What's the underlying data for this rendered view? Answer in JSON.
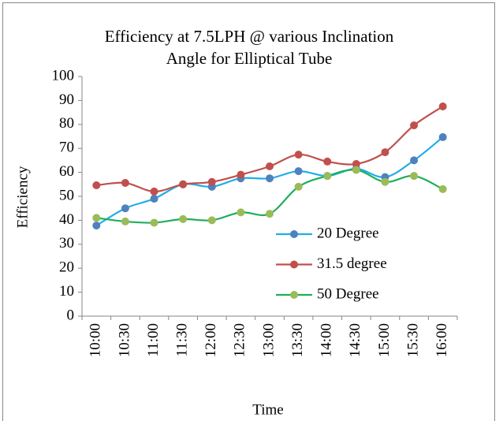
{
  "chart_data": {
    "type": "line",
    "title": [
      "Efficiency at 7.5LPH @ various Inclination",
      "Angle for Elliptical Tube"
    ],
    "x_label": "Time",
    "y_label": "Efficiency",
    "categories": [
      "10:00",
      "10:30",
      "11:00",
      "11:30",
      "12:00",
      "12:30",
      "13:00",
      "13:30",
      "14:00",
      "14:30",
      "15:00",
      "15:30",
      "16:00"
    ],
    "series": [
      {
        "name": "20 Degree",
        "color": "#4f81bd",
        "line_color": "#1faee8",
        "values": [
          37.8,
          45,
          49,
          55,
          54,
          57.5,
          57.5,
          60.5,
          58.5,
          61.5,
          58,
          65,
          74.7
        ]
      },
      {
        "name": "31.5 degree",
        "color": "#c0504d",
        "line_color": "#c0504d",
        "values": [
          54.6,
          55.6,
          52,
          55,
          56,
          59,
          62.5,
          67.4,
          64.5,
          63.5,
          68.4,
          79.6,
          87.5
        ]
      },
      {
        "name": "50 Degree",
        "color": "#9bbb59",
        "line_color": "#1fae5a",
        "values": [
          41,
          39.5,
          39,
          40.5,
          40,
          43.3,
          42.7,
          54,
          58.5,
          61,
          56,
          58.5,
          53
        ]
      }
    ],
    "ylim": [
      0,
      100
    ],
    "yticks": [
      0,
      10,
      20,
      30,
      40,
      50,
      60,
      70,
      80,
      90,
      100
    ],
    "legend": "right"
  }
}
